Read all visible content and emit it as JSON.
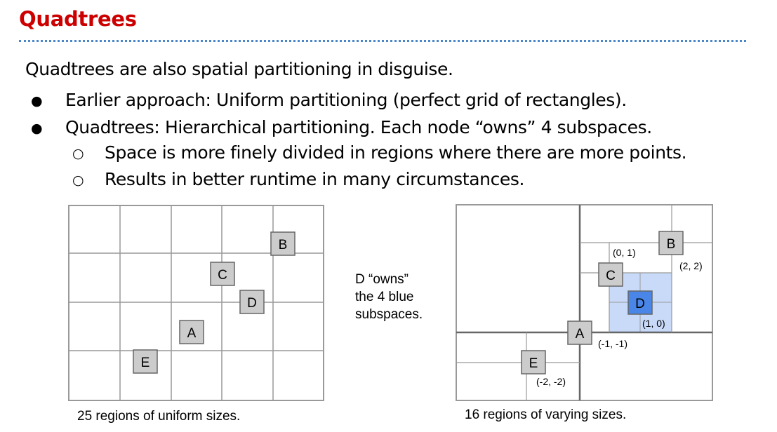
{
  "slide": {
    "title": "Quadtrees",
    "intro": "Quadtrees are also spatial partitioning in disguise.",
    "bullets": [
      "Earlier approach: Uniform partitioning (perfect grid of rectangles).",
      "Quadtrees: Hierarchical partitioning. Each node “owns” 4 subspaces."
    ],
    "subbullets": [
      "Space is more finely divided in regions where there are more points.",
      "Results in better runtime in many circumstances."
    ],
    "bullet_glyph": "●",
    "subbullet_glyph": "○"
  },
  "uniform_diagram": {
    "caption": "25 regions of uniform sizes.",
    "points": {
      "A": "A",
      "B": "B",
      "C": "C",
      "D": "D",
      "E": "E"
    }
  },
  "middle_note": {
    "line1": "D “owns”",
    "line2": "the 4 blue",
    "line3": "subspaces."
  },
  "quadtree_diagram": {
    "caption": "16 regions of varying sizes.",
    "points": {
      "A": "A",
      "B": "B",
      "C": "C",
      "D": "D",
      "E": "E"
    },
    "coords": {
      "B": "(2, 2)",
      "C": "(0, 1)",
      "D": "(1, 0)",
      "A": "(-1, -1)",
      "E": "(-2, -2)"
    }
  },
  "colors": {
    "title": "#cc0000",
    "divider": "#4a86c8",
    "point_fill": "#cccccc",
    "highlight_fill": "#4a86e8",
    "subspace_fill": "#c9daf8"
  }
}
